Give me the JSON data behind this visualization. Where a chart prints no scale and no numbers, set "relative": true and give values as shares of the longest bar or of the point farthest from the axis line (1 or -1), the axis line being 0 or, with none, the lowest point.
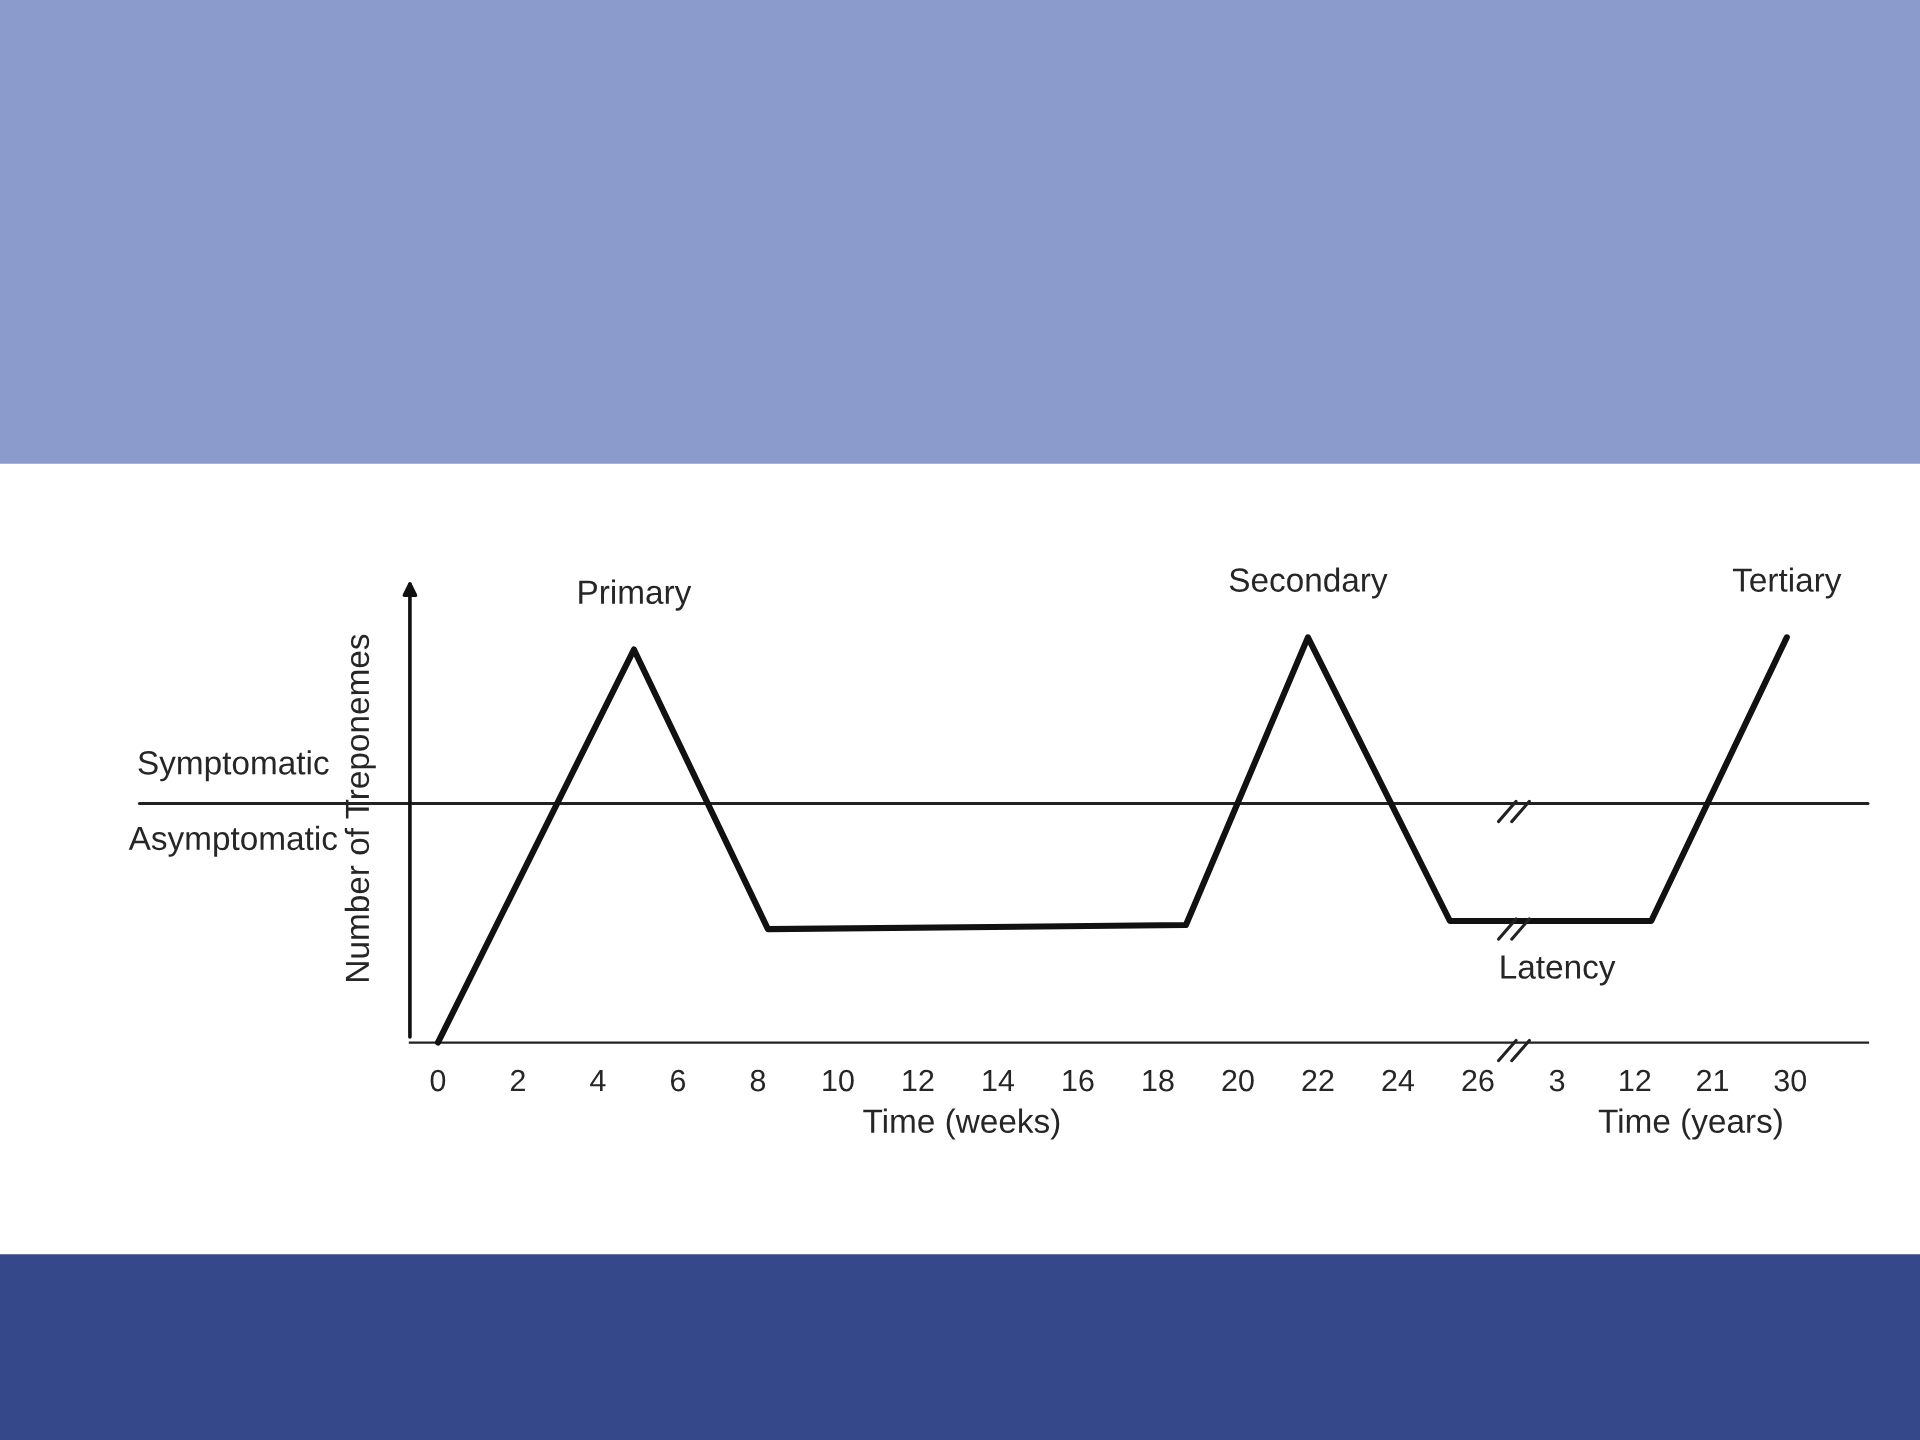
{
  "chart_data": [
    {
      "type": "line",
      "relative": true,
      "tick_labels": "x",
      "xlabel": "Time (weeks)",
      "ylabel": "Number of Treponemes",
      "x": [
        0,
        4.9,
        8.25,
        18.7,
        21.75,
        25.3,
        26.9
      ],
      "series": [
        {
          "color": "#111111",
          "values": [
            0,
            0.97,
            0.28,
            0.29,
            1.0,
            0.3,
            0.3
          ]
        }
      ],
      "xlim": [
        -0.7,
        26.9
      ],
      "xticks": [
        0,
        2,
        4,
        6,
        8,
        10,
        12,
        14,
        16,
        18,
        20,
        22,
        24,
        26
      ],
      "ref_lines": [
        {
          "axis": "y",
          "value": 0.59,
          "label": "Symptomatic",
          "color": "#222222"
        }
      ],
      "annotations": [
        {
          "text": "Primary",
          "x": 4.9,
          "y": 0.97
        },
        {
          "text": "Secondary",
          "x": 21.75,
          "y": 1.0
        },
        "Asymptomatic"
      ],
      "grid": false,
      "marker": "none",
      "line_style": "solid"
    },
    {
      "type": "line",
      "relative": true,
      "tick_labels": "x",
      "xlabel": "Time (years)",
      "x": [
        -2,
        13.9,
        29.6
      ],
      "series": [
        {
          "color": "#111111",
          "values": [
            0.3,
            0.3,
            1.0
          ]
        }
      ],
      "xlim": [
        -2,
        39
      ],
      "xticks": [
        3,
        12,
        21,
        30
      ],
      "ref_lines": [
        {
          "axis": "y",
          "value": 0.59,
          "color": "#222222"
        }
      ],
      "annotations": [
        {
          "text": "Tertiary",
          "x": 29.6,
          "y": 1.0
        },
        {
          "text": "Latency",
          "x": 3,
          "y": 0.3
        }
      ],
      "grid": false,
      "marker": "none",
      "line_style": "solid"
    }
  ]
}
